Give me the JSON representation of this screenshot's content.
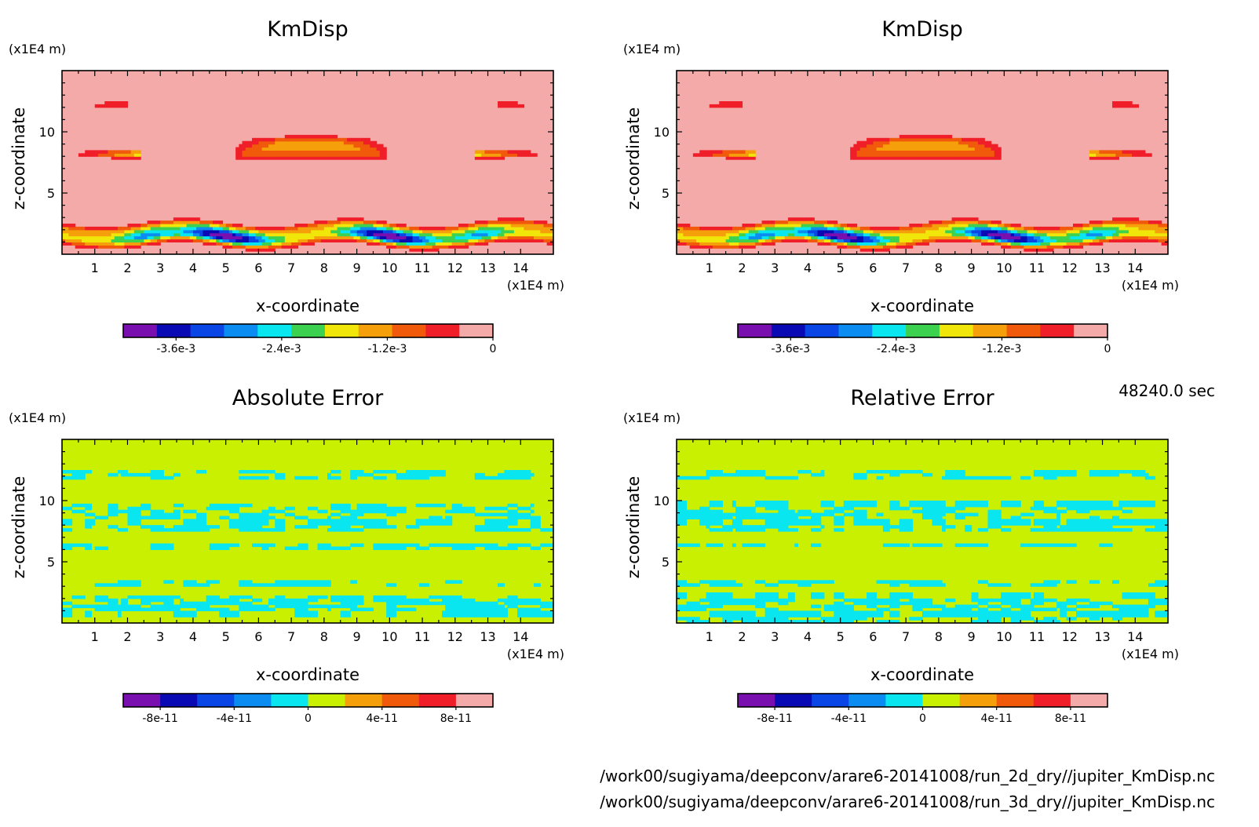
{
  "footer": {
    "time": "48240.0 sec",
    "file_1": "/work00/sugiyama/deepconv/arare6-20141008/run_2d_dry//jupiter_KmDisp.nc",
    "file_2": "/work00/sugiyama/deepconv/arare6-20141008/run_3d_dry//jupiter_KmDisp.nc"
  },
  "colors": {
    "kmdisp_levels": [
      "#7a0fb0",
      "#0a0ab4",
      "#0a46e6",
      "#0a8cf0",
      "#0ae6f0",
      "#3cd250",
      "#f0e60a",
      "#f5a00a",
      "#f05a0a",
      "#f01e28",
      "#f5aaaa"
    ],
    "error_levels": [
      "#7a0fb0",
      "#0a0ab4",
      "#0a46e6",
      "#0a8cf0",
      "#0ae6f0",
      "#c8f000",
      "#f5a00a",
      "#f05a0a",
      "#f01e28",
      "#f5aaaa"
    ]
  },
  "chart_data": [
    {
      "type": "heatmap",
      "panel": "top-left",
      "title": "KmDisp",
      "xlabel": "x-coordinate",
      "ylabel": "z-coordinate",
      "x_unit": "(x1E4 m)",
      "y_unit": "(x1E4 m)",
      "xlim": [
        0,
        15
      ],
      "ylim": [
        0,
        15
      ],
      "x_ticks": [
        "1",
        "2",
        "3",
        "4",
        "5",
        "6",
        "7",
        "8",
        "9",
        "10",
        "11",
        "12",
        "13",
        "14"
      ],
      "y_ticks": [
        "5",
        "10"
      ],
      "background_value": 0,
      "features": [
        {
          "type": "band",
          "z": 12.2,
          "x_ranges": [
            [
              0,
              2.0
            ],
            [
              13.3,
              15
            ]
          ],
          "value": -0.0008
        },
        {
          "type": "band",
          "z": 12.0,
          "x_ranges": [
            [
              6.8,
              8.6
            ]
          ],
          "value": -0.0003
        },
        {
          "type": "band",
          "z": 9.3,
          "x_ranges": [
            [
              4.2,
              10.8
            ]
          ],
          "value": -0.0003
        },
        {
          "type": "band",
          "z": 8.2,
          "x_ranges": [
            [
              0,
              2.4
            ],
            [
              12.6,
              15
            ]
          ],
          "value": -0.0018
        },
        {
          "type": "cap",
          "x_center": 7.6,
          "z": 8.3,
          "half_width": 2.4,
          "value": -0.0014
        },
        {
          "type": "band",
          "z": 3.3,
          "x_ranges": [
            [
              0,
              2.2
            ],
            [
              12.7,
              15
            ]
          ],
          "value": -0.0003
        },
        {
          "type": "wave",
          "z_center": 1.5,
          "value_min": -0.0042,
          "minima_x": [
            5.0,
            10.0
          ],
          "secondary_x": [
            2.5,
            12.8
          ]
        }
      ],
      "colorbar": {
        "ticks": [
          "-3.6e-3",
          "-2.4e-3",
          "-1.2e-3",
          "0"
        ],
        "range": [
          -0.0042,
          0
        ]
      }
    },
    {
      "type": "heatmap",
      "panel": "top-right",
      "title": "KmDisp",
      "xlabel": "x-coordinate",
      "ylabel": "z-coordinate",
      "x_unit": "(x1E4 m)",
      "y_unit": "(x1E4 m)",
      "xlim": [
        0,
        15
      ],
      "ylim": [
        0,
        15
      ],
      "x_ticks": [
        "1",
        "2",
        "3",
        "4",
        "5",
        "6",
        "7",
        "8",
        "9",
        "10",
        "11",
        "12",
        "13",
        "14"
      ],
      "y_ticks": [
        "5",
        "10"
      ],
      "background_value": 0,
      "features": [
        {
          "type": "band",
          "z": 12.2,
          "x_ranges": [
            [
              0,
              2.0
            ],
            [
              13.3,
              15
            ]
          ],
          "value": -0.0008
        },
        {
          "type": "band",
          "z": 12.0,
          "x_ranges": [
            [
              6.8,
              8.6
            ]
          ],
          "value": -0.0003
        },
        {
          "type": "band",
          "z": 9.3,
          "x_ranges": [
            [
              4.2,
              10.8
            ]
          ],
          "value": -0.0003
        },
        {
          "type": "band",
          "z": 8.2,
          "x_ranges": [
            [
              0,
              2.4
            ],
            [
              12.6,
              15
            ]
          ],
          "value": -0.0018
        },
        {
          "type": "cap",
          "x_center": 7.6,
          "z": 8.3,
          "half_width": 2.4,
          "value": -0.0014
        },
        {
          "type": "band",
          "z": 3.3,
          "x_ranges": [
            [
              0,
              2.2
            ],
            [
              12.7,
              15
            ]
          ],
          "value": -0.0003
        },
        {
          "type": "wave",
          "z_center": 1.5,
          "value_min": -0.0042,
          "minima_x": [
            5.0,
            10.0
          ],
          "secondary_x": [
            2.5,
            12.8
          ]
        }
      ],
      "colorbar": {
        "ticks": [
          "-3.6e-3",
          "-2.4e-3",
          "-1.2e-3",
          "0"
        ],
        "range": [
          -0.0042,
          0
        ]
      }
    },
    {
      "type": "heatmap",
      "panel": "bottom-left",
      "title": "Absolute Error",
      "xlabel": "x-coordinate",
      "ylabel": "z-coordinate",
      "x_unit": "(x1E4 m)",
      "y_unit": "(x1E4 m)",
      "xlim": [
        0,
        15
      ],
      "ylim": [
        0,
        15
      ],
      "x_ticks": [
        "1",
        "2",
        "3",
        "4",
        "5",
        "6",
        "7",
        "8",
        "9",
        "10",
        "11",
        "12",
        "13",
        "14"
      ],
      "y_ticks": [
        "5",
        "10"
      ],
      "background_value": 0,
      "features": [
        {
          "type": "patches",
          "z_range": [
            11.8,
            12.6
          ],
          "value": -1e-11
        },
        {
          "type": "patches",
          "z_range": [
            7.5,
            9.8
          ],
          "value": -1e-11
        },
        {
          "type": "patches",
          "z_range": [
            6.1,
            6.6
          ],
          "value": -1e-11
        },
        {
          "type": "patches",
          "z_range": [
            3.0,
            3.5
          ],
          "value": -1e-11
        },
        {
          "type": "patches",
          "z_range": [
            0.6,
            2.2
          ],
          "value": -1e-11
        }
      ],
      "colorbar": {
        "ticks": [
          "-8e-11",
          "-4e-11",
          "0",
          "4e-11",
          "8e-11"
        ],
        "range": [
          -1e-10,
          1e-10
        ]
      }
    },
    {
      "type": "heatmap",
      "panel": "bottom-right",
      "title": "Relative Error",
      "xlabel": "x-coordinate",
      "ylabel": "z-coordinate",
      "x_unit": "(x1E4 m)",
      "y_unit": "(x1E4 m)",
      "xlim": [
        0,
        15
      ],
      "ylim": [
        0,
        15
      ],
      "x_ticks": [
        "1",
        "2",
        "3",
        "4",
        "5",
        "6",
        "7",
        "8",
        "9",
        "10",
        "11",
        "12",
        "13",
        "14"
      ],
      "y_ticks": [
        "5",
        "10"
      ],
      "background_value": 0,
      "features": [
        {
          "type": "patches",
          "z_range": [
            11.8,
            12.5
          ],
          "value": -1e-11
        },
        {
          "type": "patches",
          "z_range": [
            7.5,
            9.9
          ],
          "value": -1e-11
        },
        {
          "type": "patches",
          "z_range": [
            6.2,
            6.5
          ],
          "value": -1e-11
        },
        {
          "type": "patches",
          "z_range": [
            3.0,
            3.5
          ],
          "value": -1e-11
        },
        {
          "type": "patches",
          "z_range": [
            0,
            2.4
          ],
          "value": -1e-11
        }
      ],
      "colorbar": {
        "ticks": [
          "-8e-11",
          "-4e-11",
          "0",
          "4e-11",
          "8e-11"
        ],
        "range": [
          -1e-10,
          1e-10
        ]
      }
    }
  ]
}
